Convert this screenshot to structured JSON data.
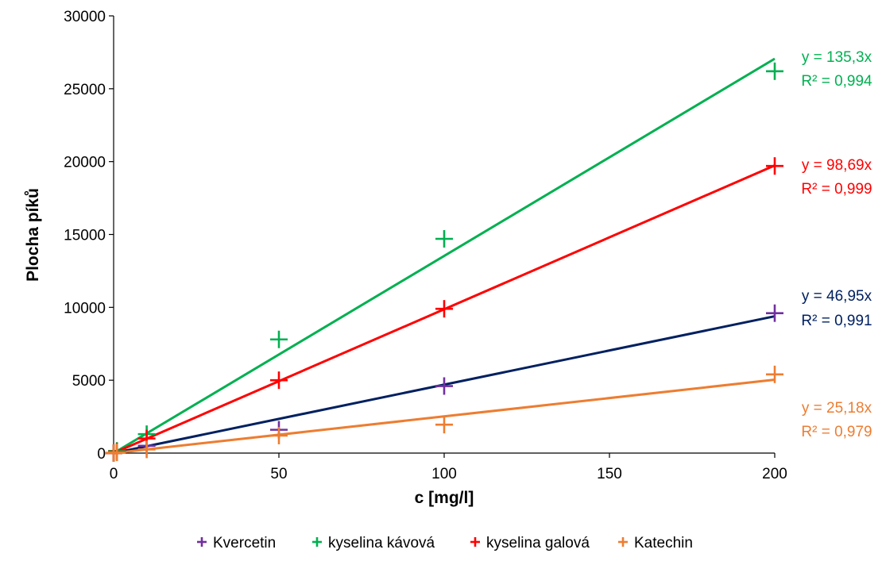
{
  "chart_data": {
    "type": "scatter",
    "xlabel": "c [mg/l]",
    "ylabel": "Plocha píků",
    "xlim": [
      0,
      200
    ],
    "ylim": [
      0,
      30000
    ],
    "x_ticks": [
      "0",
      "50",
      "100",
      "150",
      "200"
    ],
    "y_ticks": [
      "0",
      "5000",
      "10000",
      "15000",
      "20000",
      "25000",
      "30000"
    ],
    "grid": false,
    "legend_position": "bottom",
    "series": [
      {
        "name": "Kvercetin",
        "color": "#7030a0",
        "trendline_color": "#002060",
        "slope": 46.95,
        "points": [
          [
            0,
            0
          ],
          [
            1,
            100
          ],
          [
            10,
            500
          ],
          [
            50,
            1600
          ],
          [
            100,
            4600
          ],
          [
            200,
            9600
          ]
        ],
        "equation": "y = 46,95x",
        "r2": "R² = 0,991"
      },
      {
        "name": "kyselina kávová",
        "color": "#00b050",
        "trendline_color": "#00b050",
        "slope": 135.3,
        "points": [
          [
            0,
            0
          ],
          [
            1,
            150
          ],
          [
            10,
            1300
          ],
          [
            50,
            7800
          ],
          [
            100,
            14700
          ],
          [
            200,
            26200
          ]
        ],
        "equation": "y = 135,3x",
        "r2": "R² = 0,994"
      },
      {
        "name": "kyselina galová",
        "color": "#ff0000",
        "trendline_color": "#ff0000",
        "slope": 98.69,
        "points": [
          [
            0,
            0
          ],
          [
            1,
            100
          ],
          [
            10,
            1000
          ],
          [
            50,
            5000
          ],
          [
            100,
            9900
          ],
          [
            200,
            19700
          ]
        ],
        "equation": "y = 98,69x",
        "r2": "R² = 0,999"
      },
      {
        "name": "Katechin",
        "color": "#ed7d31",
        "trendline_color": "#ed7d31",
        "slope": 25.18,
        "points": [
          [
            0,
            0
          ],
          [
            1,
            50
          ],
          [
            10,
            250
          ],
          [
            50,
            1200
          ],
          [
            100,
            1950
          ],
          [
            200,
            5400
          ]
        ],
        "equation": "y = 25,18x",
        "r2": "R² = 0,979"
      }
    ]
  }
}
